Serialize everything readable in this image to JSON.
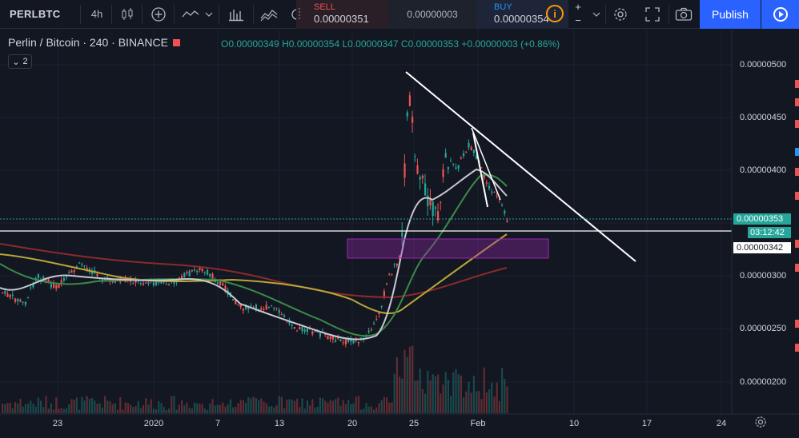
{
  "toolbar": {
    "symbol": "PERLBTC",
    "interval": "4h",
    "sell": {
      "label": "SELL",
      "price": "0.00000351"
    },
    "spread": "0.00000003",
    "buy": {
      "label": "BUY",
      "price": "0.00000354"
    },
    "qty_plus": "+",
    "qty_minus": "−",
    "info": "i",
    "publish": "Publish",
    "icons": [
      "candle-style-icon",
      "add-indicator-icon",
      "chevron-down-icon",
      "compare-icon",
      "chevron-down-icon",
      "bars-style-icon",
      "indicators-icon",
      "alert-icon",
      "settings-gear-icon",
      "fullscreen-icon",
      "snapshot-camera-icon",
      "play-icon"
    ]
  },
  "legend": {
    "title": "Perlin / Bitcoin · 240 · BINANCE",
    "open": "O0.00000349",
    "high": "H0.00000354",
    "low": "L0.00000347",
    "close": "C0.00000353",
    "change": "+0.00000003 (+0.86%)",
    "collapse_count": "2"
  },
  "price_axis": {
    "labels": [
      "0.00000500",
      "0.00000450",
      "0.00000400",
      "0.00000300",
      "0.00000250",
      "0.00000200"
    ],
    "current_price": "0.00000353",
    "countdown": "03:12:42",
    "crosshair_price": "0.00000342"
  },
  "time_axis": {
    "labels": [
      "23",
      "2020",
      "7",
      "13",
      "20",
      "25",
      "Feb",
      "10",
      "17",
      "24"
    ]
  },
  "colors": {
    "background": "#131722",
    "up": "#26a69a",
    "down": "#ef5350",
    "accent": "#2962ff",
    "zone": "#9c27b0"
  }
}
